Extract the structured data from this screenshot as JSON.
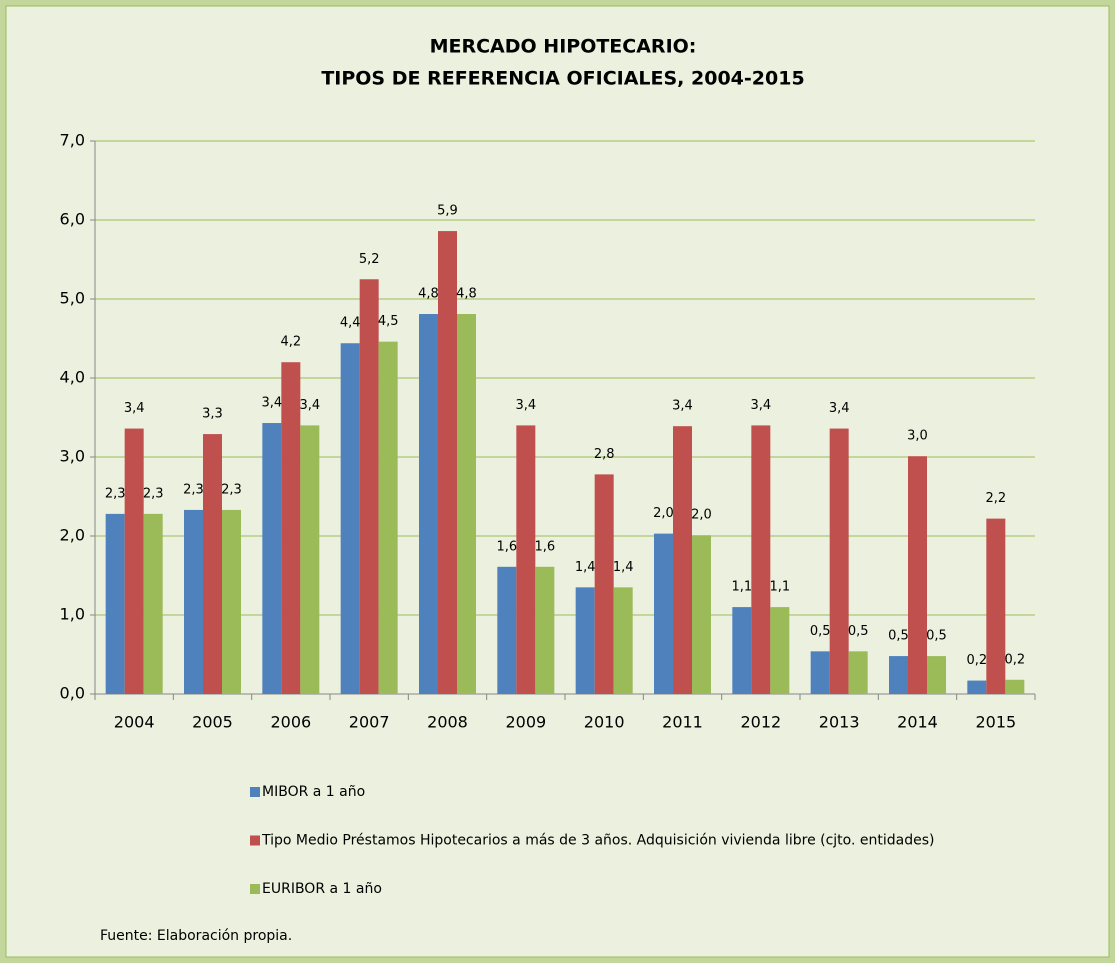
{
  "chart_data": {
    "type": "bar",
    "title": "MERCADO HIPOTECARIO:",
    "subtitle": "TIPOS DE REFERENCIA OFICIALES, 2004-2015",
    "source": "Fuente:  Elaboración propia.",
    "categories": [
      "2004",
      "2005",
      "2006",
      "2007",
      "2008",
      "2009",
      "2010",
      "2011",
      "2012",
      "2013",
      "2014",
      "2015"
    ],
    "series": [
      {
        "name": "MIBOR a 1 año",
        "color": "#4f81bd",
        "values": [
          2.28,
          2.33,
          3.43,
          4.44,
          4.81,
          1.61,
          1.35,
          2.03,
          1.1,
          0.54,
          0.48,
          0.17
        ],
        "value_labels": [
          "2,3",
          "2,3",
          "3,4",
          "4,4",
          "4,8",
          "1,6",
          "1,4",
          "2,0",
          "1,1",
          "0,5",
          "0,5",
          "0,2"
        ]
      },
      {
        "name": "Tipo Medio Préstamos Hipotecarios a más de 3 años. Adquisición vivienda libre (cjto. entidades)",
        "color": "#c0504d",
        "values": [
          3.36,
          3.29,
          4.2,
          5.25,
          5.86,
          3.4,
          2.78,
          3.39,
          3.4,
          3.36,
          3.01,
          2.22
        ],
        "value_labels": [
          "3,4",
          "3,3",
          "4,2",
          "5,2",
          "5,9",
          "3,4",
          "2,8",
          "3,4",
          "3,4",
          "3,4",
          "3,0",
          "2,2"
        ]
      },
      {
        "name": "EURIBOR a 1 año",
        "color": "#9bbb59",
        "values": [
          2.28,
          2.33,
          3.4,
          4.46,
          4.81,
          1.61,
          1.35,
          2.01,
          1.1,
          0.54,
          0.48,
          0.18
        ],
        "value_labels": [
          "2,3",
          "2,3",
          "3,4",
          "4,5",
          "4,8",
          "1,6",
          "1,4",
          "2,0",
          "1,1",
          "0,5",
          "0,5",
          "0,2"
        ]
      }
    ],
    "ylim": [
      0,
      7
    ],
    "yticks": [
      {
        "value": 0,
        "label": "0,0"
      },
      {
        "value": 1,
        "label": "1,0"
      },
      {
        "value": 2,
        "label": "2,0"
      },
      {
        "value": 3,
        "label": "3,0"
      },
      {
        "value": 4,
        "label": "4,0"
      },
      {
        "value": 5,
        "label": "5,0"
      },
      {
        "value": 6,
        "label": "6,0"
      },
      {
        "value": 7,
        "label": "7,0"
      }
    ],
    "grid": true,
    "legend": "bottom"
  }
}
